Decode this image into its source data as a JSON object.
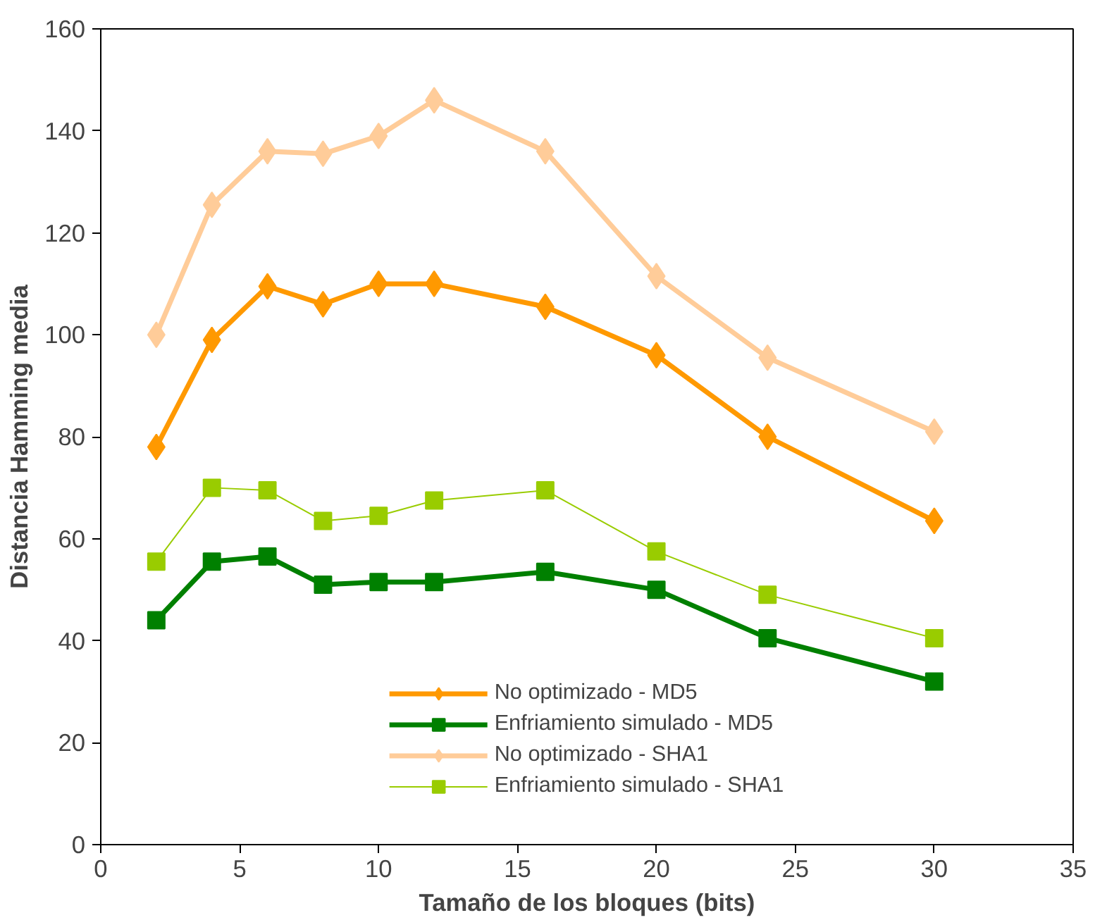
{
  "chart_data": {
    "type": "line",
    "xlabel": "Tamaño de los bloques (bits)",
    "ylabel": "Distancia Hamming media",
    "x": [
      2,
      4,
      6,
      8,
      10,
      12,
      16,
      20,
      24,
      30
    ],
    "xlim": [
      0,
      35
    ],
    "xticks": [
      0,
      5,
      10,
      15,
      20,
      25,
      30,
      35
    ],
    "ylim": [
      0,
      160
    ],
    "yticks": [
      0,
      20,
      40,
      60,
      80,
      100,
      120,
      140,
      160
    ],
    "grid": false,
    "legend": "bottom",
    "line_style": "solid",
    "series": [
      {
        "name": "No optimizado - MD5",
        "color": "#ff9900",
        "marker": "diamond",
        "values": [
          78,
          99,
          109.5,
          106,
          110,
          110,
          105.5,
          96,
          80,
          63.5
        ]
      },
      {
        "name": "Enfriamiento simulado - MD5",
        "color": "#008000",
        "marker": "square",
        "values": [
          44,
          55.5,
          56.5,
          51,
          51.5,
          51.5,
          53.5,
          50,
          40.5,
          32
        ]
      },
      {
        "name": "No optimizado - SHA1",
        "color": "#ffcc99",
        "marker": "diamond",
        "values": [
          100,
          125.5,
          136,
          135.5,
          139,
          146,
          136,
          111.5,
          95.5,
          81
        ]
      },
      {
        "name": "Enfriamiento simulado - SHA1",
        "color": "#99cc00",
        "marker": "square",
        "values": [
          55.5,
          70,
          69.5,
          63.5,
          64.5,
          67.5,
          69.5,
          57.5,
          49,
          40.5
        ]
      }
    ]
  }
}
